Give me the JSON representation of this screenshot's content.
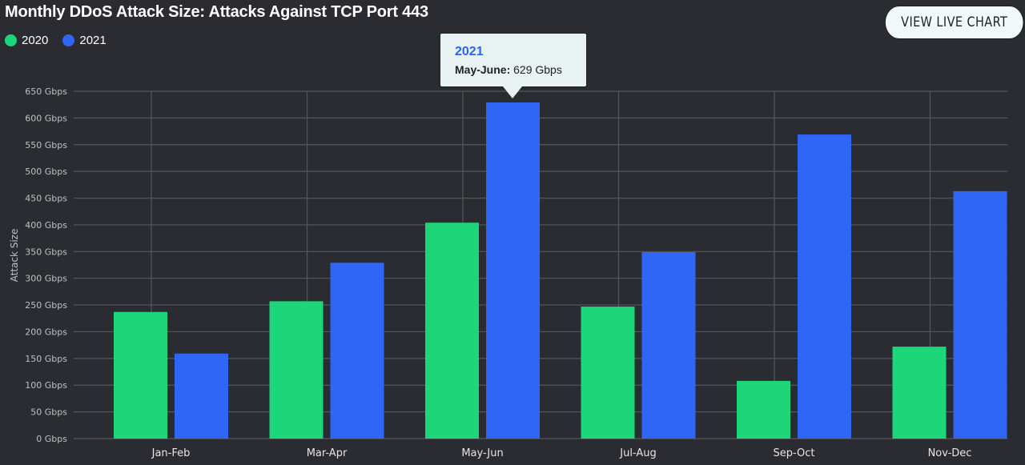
{
  "header": {
    "title": "Monthly DDoS Attack Size: Attacks Against TCP Port 443",
    "live_button_label": "VIEW LIVE CHART"
  },
  "legend": [
    {
      "label": "2020",
      "color": "#1ed67a"
    },
    {
      "label": "2021",
      "color": "#2f66f6"
    }
  ],
  "tooltip": {
    "series": "2021",
    "category_label": "May-June:",
    "value_text": "629 Gbps"
  },
  "chart_data": {
    "type": "bar",
    "title": "Monthly DDoS Attack Size: Attacks Against TCP Port 443",
    "xlabel": "",
    "ylabel": "Attack Size",
    "categories": [
      "Jan-Feb",
      "Mar-Apr",
      "May-Jun",
      "Jul-Aug",
      "Sep-Oct",
      "Nov-Dec"
    ],
    "series": [
      {
        "name": "2020",
        "color": "#1ed67a",
        "values": [
          237,
          257,
          404,
          247,
          108,
          172
        ]
      },
      {
        "name": "2021",
        "color": "#2f66f6",
        "values": [
          159,
          329,
          629,
          349,
          569,
          463
        ]
      }
    ],
    "ylim": [
      0,
      650
    ],
    "yticks": [
      0,
      50,
      100,
      150,
      200,
      250,
      300,
      350,
      400,
      450,
      500,
      550,
      600,
      650
    ],
    "ytick_labels": [
      "0 Gbps",
      "50 Gbps",
      "100 Gbps",
      "150 Gbps",
      "200 Gbps",
      "250 Gbps",
      "300 Gbps",
      "350 Gbps",
      "400 Gbps",
      "450 Gbps",
      "500 Gbps",
      "550 Gbps",
      "600 Gbps",
      "650 Gbps"
    ],
    "unit": "Gbps",
    "grid": true,
    "legend_position": "top-left"
  }
}
